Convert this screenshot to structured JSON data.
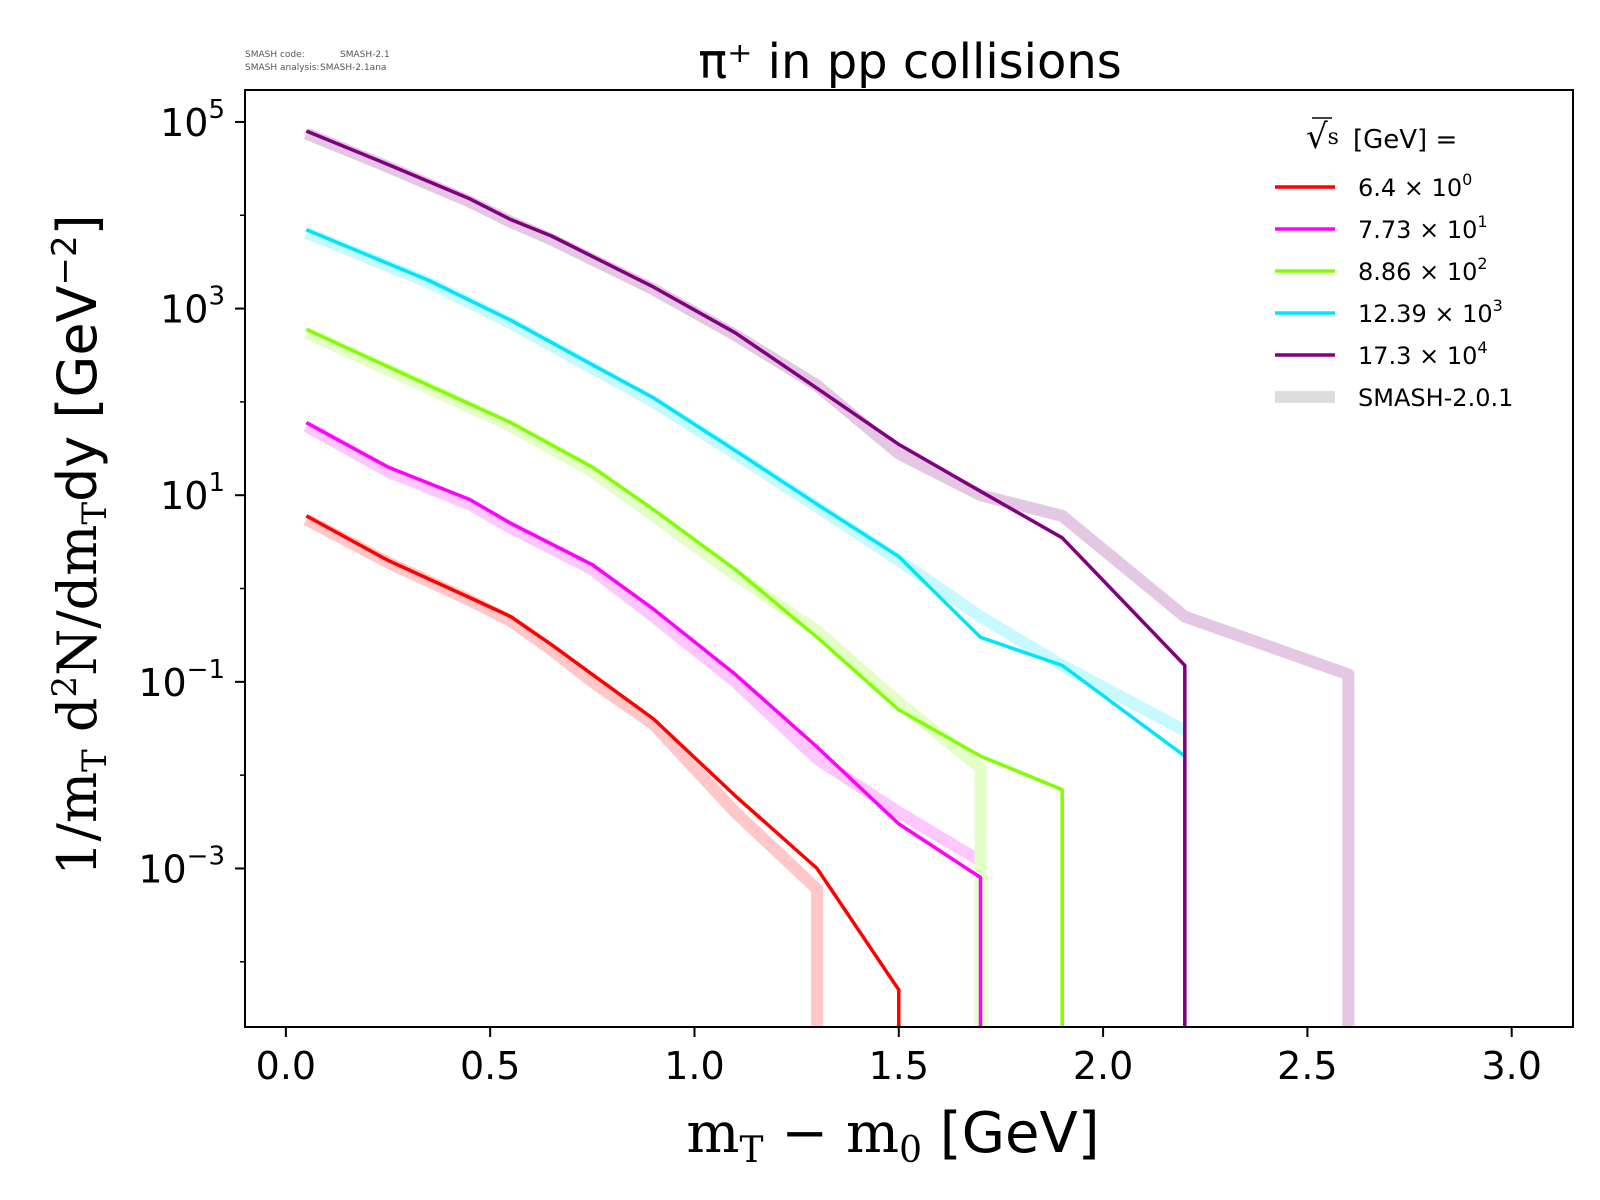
{
  "meta": {
    "code_label": "SMASH code:",
    "code_value": "SMASH-2.1",
    "analysis_label": "SMASH analysis:",
    "analysis_value": "SMASH-2.1ana"
  },
  "chart_data": {
    "type": "line",
    "title": "π⁺ in pp collisions",
    "xlabel": "m_T − m_0 [GeV]",
    "ylabel": "1/m_T d²N/dm_T dy [GeV⁻²]",
    "xlabel_parts": {
      "main": "m",
      "sub1": "T",
      "mid": " − m",
      "sub2": "0",
      "unit": " [GeV]"
    },
    "ylabel_parts": {
      "p1": "1/m",
      "s1": "T",
      "p2": " d",
      "sup": "2",
      "p3": "N/dm",
      "s2": "T",
      "p4": "dy [GeV",
      "sup2": "−2",
      "p5": "]"
    },
    "x_scale": "linear",
    "y_scale": "log",
    "xlim": [
      -0.1,
      3.15
    ],
    "ylim": [
      2e-05,
      220000.0
    ],
    "x_ticks": [
      0.0,
      0.5,
      1.0,
      1.5,
      2.0,
      2.5,
      3.0
    ],
    "x_tick_labels": [
      "0.0",
      "0.5",
      "1.0",
      "1.5",
      "2.0",
      "2.5",
      "3.0"
    ],
    "y_ticks": [
      {
        "value": 100000,
        "base": "10",
        "exp": "5"
      },
      {
        "value": 1000,
        "base": "10",
        "exp": "3"
      },
      {
        "value": 10,
        "base": "10",
        "exp": "1"
      },
      {
        "value": 0.1,
        "base": "10",
        "exp": "−1"
      },
      {
        "value": 0.001,
        "base": "10",
        "exp": "−3"
      }
    ],
    "grid": false,
    "legend": {
      "position": "top-right",
      "title": "√s [GeV] =",
      "title_parts": {
        "root": "√",
        "s": "s",
        "rest": "[GeV] ="
      },
      "reference_label": "SMASH-2.0.1",
      "reference_color": "#dddddd"
    },
    "series": [
      {
        "name": "6.4 × 10⁰",
        "label_main": "6.4",
        "label_times": "×",
        "label_base": "10",
        "label_exp": "0",
        "color": "#ff0000",
        "x": [
          0.05,
          0.25,
          0.45,
          0.55,
          0.65,
          0.75,
          0.9,
          1.1,
          1.3,
          1.5,
          1.5
        ],
        "y": [
          6,
          2,
          0.8,
          0.5,
          0.25,
          0.12,
          0.04,
          0.006,
          0.001,
          5e-05,
          2e-05
        ],
        "ref_x": [
          0.05,
          0.25,
          0.45,
          0.55,
          0.65,
          0.75,
          0.9,
          1.1,
          1.3,
          1.3
        ],
        "ref_y": [
          5.5,
          1.9,
          0.75,
          0.45,
          0.22,
          0.1,
          0.035,
          0.004,
          0.0006,
          2e-05
        ]
      },
      {
        "name": "7.73 × 10¹",
        "label_main": "7.73",
        "label_times": "×",
        "label_base": "10",
        "label_exp": "1",
        "color": "#ff00ff",
        "x": [
          0.05,
          0.25,
          0.45,
          0.55,
          0.75,
          0.9,
          1.1,
          1.3,
          1.5,
          1.7,
          1.7
        ],
        "y": [
          60,
          20,
          9,
          5,
          1.8,
          0.6,
          0.12,
          0.02,
          0.003,
          0.0008,
          2e-05
        ],
        "ref_x": [
          0.05,
          0.25,
          0.45,
          0.55,
          0.75,
          0.9,
          1.1,
          1.3,
          1.5,
          1.7,
          1.7
        ],
        "ref_y": [
          55,
          18,
          8,
          4.5,
          1.6,
          0.5,
          0.1,
          0.015,
          0.004,
          0.0012,
          2e-05
        ]
      },
      {
        "name": "8.86 × 10²",
        "label_main": "8.86",
        "label_times": "×",
        "label_base": "10",
        "label_exp": "2",
        "color": "#80ff00",
        "x": [
          0.05,
          0.35,
          0.55,
          0.75,
          0.9,
          1.1,
          1.3,
          1.5,
          1.7,
          1.9,
          1.9
        ],
        "y": [
          600,
          150,
          60,
          20,
          7,
          1.6,
          0.3,
          0.05,
          0.016,
          0.007,
          2e-05
        ],
        "ref_x": [
          0.05,
          0.35,
          0.55,
          0.75,
          0.9,
          1.1,
          1.3,
          1.5,
          1.7,
          1.7
        ],
        "ref_y": [
          550,
          140,
          55,
          18,
          6,
          1.4,
          0.35,
          0.06,
          0.012,
          2e-05
        ]
      },
      {
        "name": "12.39 × 10³",
        "label_main": "12.39",
        "label_times": "×",
        "label_base": "10",
        "label_exp": "3",
        "color": "#00e5ff",
        "x": [
          0.05,
          0.35,
          0.55,
          0.75,
          0.9,
          1.1,
          1.3,
          1.5,
          1.7,
          1.9,
          2.2,
          2.2
        ],
        "y": [
          7000,
          2000,
          750,
          250,
          110,
          30,
          8,
          2.2,
          0.3,
          0.15,
          0.016,
          2e-05
        ],
        "ref_x": [
          0.05,
          0.35,
          0.55,
          0.75,
          0.9,
          1.1,
          1.3,
          1.5,
          1.7,
          1.9,
          2.2
        ],
        "ref_y": [
          6500,
          1900,
          700,
          230,
          100,
          28,
          7.5,
          2.0,
          0.5,
          0.15,
          0.03
        ]
      },
      {
        "name": "17.3 × 10⁴",
        "label_main": "17.3",
        "label_times": "×",
        "label_base": "10",
        "label_exp": "4",
        "color": "#800080",
        "x": [
          0.05,
          0.25,
          0.45,
          0.55,
          0.65,
          0.9,
          1.1,
          1.3,
          1.5,
          1.7,
          1.9,
          2.2,
          2.2
        ],
        "y": [
          80000,
          35000,
          15000,
          9000,
          6000,
          1700,
          550,
          140,
          35,
          11,
          3.5,
          0.15,
          2e-05
        ],
        "ref_x": [
          0.05,
          0.25,
          0.45,
          0.55,
          0.65,
          0.9,
          1.1,
          1.3,
          1.5,
          1.7,
          1.9,
          2.2,
          2.6,
          2.6
        ],
        "ref_y": [
          75000,
          33000,
          14000,
          8500,
          5500,
          1600,
          520,
          150,
          28,
          10,
          6,
          0.5,
          0.12,
          2e-05
        ]
      }
    ]
  }
}
